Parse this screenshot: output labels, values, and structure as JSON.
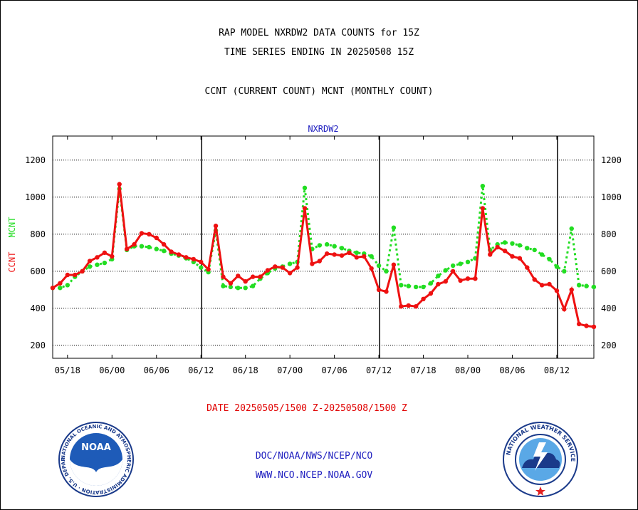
{
  "header": {
    "line1": "RAP MODEL NXRDW2 DATA COUNTS for 15Z",
    "line2": "TIME SERIES ENDING IN 20250508 15Z",
    "line3": "CCNT (CURRENT COUNT) MCNT (MONTHLY COUNT)"
  },
  "footer": {
    "date_range": "DATE 20250505/1500 Z-20250508/1500 Z",
    "link1": "DOC/NOAA/NWS/NCEP/NCO",
    "link2": "WWW.NCO.NCEP.NOAA.GOV"
  },
  "logos": {
    "left": "NOAA",
    "left_ring": "NATIONAL OCEANIC AND ATMOSPHERIC ADMINISTRATION · U.S. DEPARTMENT OF COMMERCE ·",
    "right_ring": "NATIONAL WEATHER SERVICE"
  },
  "colors": {
    "ccnt": "#ee1111",
    "mcnt": "#22dd22",
    "subtitle": "#2020c0",
    "axis": "#000000"
  },
  "chart_data": {
    "type": "line",
    "subtitle": "NXRDW2",
    "ylabel_left": [
      "CCNT",
      "MCNT"
    ],
    "ylim": [
      130,
      1330
    ],
    "yticks": [
      200,
      400,
      600,
      800,
      1000,
      1200
    ],
    "x_ticks": [
      "05/18",
      "06/00",
      "06/06",
      "06/12",
      "06/18",
      "07/00",
      "07/06",
      "07/12",
      "07/18",
      "08/00",
      "08/06",
      "08/12"
    ],
    "x_tick_index": [
      2,
      8,
      14,
      20,
      26,
      32,
      38,
      44,
      50,
      56,
      62,
      68
    ],
    "vertical_lines_index": [
      20.1,
      44.1,
      68.1
    ],
    "series": [
      {
        "name": "CCNT",
        "color": "#ee1111",
        "values": [
          510,
          535,
          580,
          580,
          600,
          655,
          675,
          700,
          680,
          1070,
          720,
          745,
          805,
          800,
          780,
          745,
          705,
          690,
          675,
          665,
          650,
          610,
          845,
          570,
          535,
          575,
          545,
          570,
          570,
          605,
          625,
          620,
          590,
          620,
          940,
          640,
          655,
          695,
          690,
          685,
          700,
          675,
          680,
          615,
          500,
          490,
          635,
          410,
          415,
          410,
          450,
          480,
          530,
          545,
          600,
          550,
          560,
          560,
          940,
          690,
          730,
          710,
          680,
          670,
          620,
          555,
          525,
          530,
          495,
          395,
          500,
          315,
          305,
          300
        ]
      },
      {
        "name": "MCNT",
        "color": "#22dd22",
        "values": [
          510,
          510,
          525,
          570,
          600,
          625,
          635,
          645,
          665,
          1045,
          715,
          735,
          735,
          730,
          720,
          710,
          695,
          685,
          670,
          650,
          620,
          595,
          820,
          520,
          515,
          510,
          510,
          520,
          560,
          590,
          615,
          625,
          640,
          650,
          1050,
          720,
          740,
          745,
          735,
          725,
          710,
          700,
          695,
          680,
          630,
          600,
          835,
          525,
          520,
          515,
          515,
          535,
          575,
          605,
          630,
          640,
          650,
          670,
          1060,
          715,
          745,
          755,
          750,
          740,
          725,
          715,
          690,
          665,
          625,
          600,
          830,
          525,
          520,
          515
        ]
      }
    ]
  }
}
